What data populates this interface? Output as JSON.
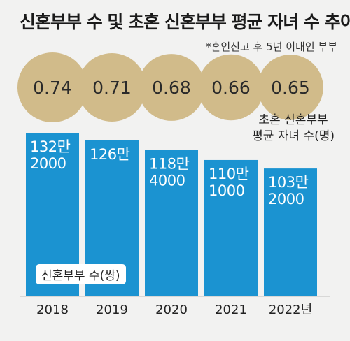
{
  "title": "신혼부부 수 및 초혼 신혼부부 평균 자녀 수 추이",
  "note": "*혼인신고 후 5년 이내인 부부",
  "colors": {
    "bar": "#1b93d1",
    "circle": "#d1bb8a",
    "background": "#f2f2f1"
  },
  "chart_data": {
    "type": "bar",
    "categories": [
      "2018",
      "2019",
      "2020",
      "2021",
      "2022년"
    ],
    "series": [
      {
        "name": "신혼부부 수(쌍)",
        "values": [
          1322000,
          1260000,
          1184000,
          1101000,
          1032000
        ],
        "labels": [
          [
            "132만",
            "2000"
          ],
          [
            "126만",
            ""
          ],
          [
            "118만",
            "4000"
          ],
          [
            "110만",
            "1000"
          ],
          [
            "103만",
            "2000"
          ]
        ]
      },
      {
        "name_lines": [
          "초혼 신혼부부",
          "평균 자녀 수(명)"
        ],
        "values": [
          0.74,
          0.71,
          0.68,
          0.66,
          0.65
        ],
        "labels": [
          "0.74",
          "0.71",
          "0.68",
          "0.66",
          "0.65"
        ]
      }
    ],
    "ylim": [
      0,
      1322000
    ]
  }
}
